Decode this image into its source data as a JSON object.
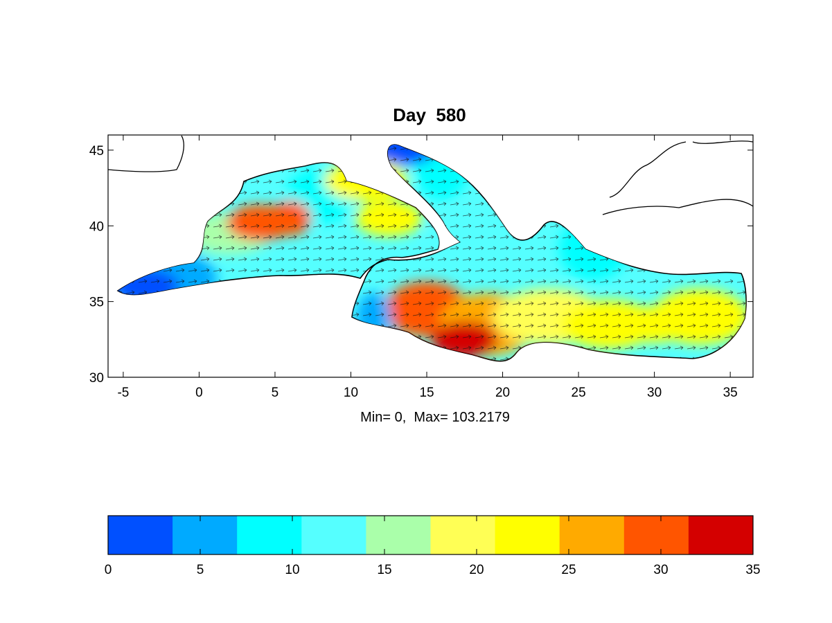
{
  "title": "Day  580",
  "subtitle": "Min= 0,  Max= 103.2179",
  "map": {
    "lon_range": [
      -6,
      36.5
    ],
    "lat_range": [
      30,
      46
    ],
    "x_ticks": [
      "-5",
      "0",
      "5",
      "10",
      "15",
      "20",
      "25",
      "30",
      "35"
    ],
    "y_ticks": [
      "30",
      "35",
      "40",
      "45"
    ],
    "region": "Mediterranean Sea",
    "vector_field": "current arrows",
    "colored_patches": [
      {
        "name": "gibraltar-alboran",
        "lon": -3.5,
        "lat": 36.0,
        "level": 0
      },
      {
        "name": "balearic-high",
        "lon": 4.0,
        "lat": 40.2,
        "level": 31
      },
      {
        "name": "tyrrhenian",
        "lon": 12.5,
        "lat": 40.5,
        "level": 24
      },
      {
        "name": "adriatic-north",
        "lon": 13.5,
        "lat": 45.2,
        "level": 2
      },
      {
        "name": "gulf-of-sirte",
        "lon": 17.5,
        "lat": 32.5,
        "level": 32
      },
      {
        "name": "levantine",
        "lon": 30.0,
        "lat": 33.5,
        "level": 22
      }
    ]
  },
  "colorbar": {
    "min": 0,
    "max": 35,
    "ticks": [
      "0",
      "5",
      "10",
      "15",
      "20",
      "25",
      "30",
      "35"
    ],
    "colors": [
      "#0050ff",
      "#00aaff",
      "#00ffff",
      "#55ffff",
      "#aaffaa",
      "#ffff55",
      "#ffff00",
      "#ffaa00",
      "#ff5500",
      "#d40000"
    ]
  }
}
